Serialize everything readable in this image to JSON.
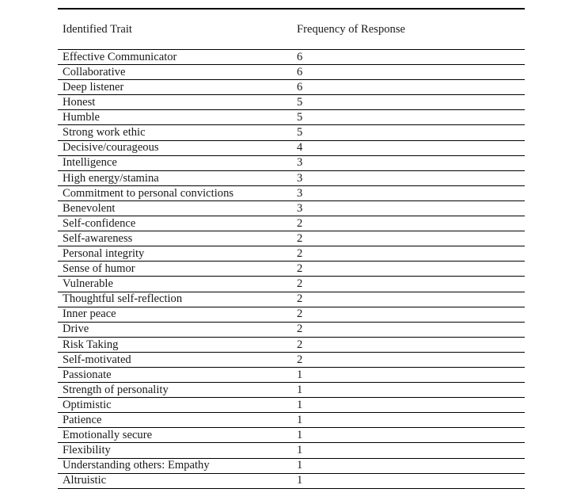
{
  "document": {
    "colors": {
      "background": "#ffffff",
      "text": "#1a1a1a",
      "rule_lines": "#000000"
    },
    "table": {
      "headers": [
        "Identified Trait",
        "Frequency of Response"
      ],
      "rows": [
        {
          "trait": "Effective Communicator",
          "frequency": "6"
        },
        {
          "trait": "Collaborative",
          "frequency": "6"
        },
        {
          "trait": "Deep listener",
          "frequency": "6"
        },
        {
          "trait": "Honest",
          "frequency": "5"
        },
        {
          "trait": "Humble",
          "frequency": "5"
        },
        {
          "trait": "Strong work ethic",
          "frequency": "5"
        },
        {
          "trait": "Decisive/courageous",
          "frequency": "4"
        },
        {
          "trait": "Intelligence",
          "frequency": "3"
        },
        {
          "trait": "High energy/stamina",
          "frequency": "3"
        },
        {
          "trait": "Commitment to personal convictions",
          "frequency": "3"
        },
        {
          "trait": "Benevolent",
          "frequency": "3"
        },
        {
          "trait": "Self-confidence",
          "frequency": "2"
        },
        {
          "trait": "Self-awareness",
          "frequency": "2"
        },
        {
          "trait": "Personal integrity",
          "frequency": "2"
        },
        {
          "trait": "Sense of humor",
          "frequency": "2"
        },
        {
          "trait": "Vulnerable",
          "frequency": "2"
        },
        {
          "trait": "Thoughtful self-reflection",
          "frequency": "2"
        },
        {
          "trait": "Inner peace",
          "frequency": "2"
        },
        {
          "trait": "Drive",
          "frequency": "2"
        },
        {
          "trait": "Risk Taking",
          "frequency": "2"
        },
        {
          "trait": "Self-motivated",
          "frequency": "2"
        },
        {
          "trait": "Passionate",
          "frequency": "1"
        },
        {
          "trait": "Strength of personality",
          "frequency": "1"
        },
        {
          "trait": "Optimistic",
          "frequency": "1"
        },
        {
          "trait": "Patience",
          "frequency": "1"
        },
        {
          "trait": "Emotionally secure",
          "frequency": "1"
        },
        {
          "trait": "Flexibility",
          "frequency": "1"
        },
        {
          "trait": "Understanding others: Empathy",
          "frequency": "1"
        },
        {
          "trait": "Altruistic",
          "frequency": "1"
        }
      ]
    }
  }
}
